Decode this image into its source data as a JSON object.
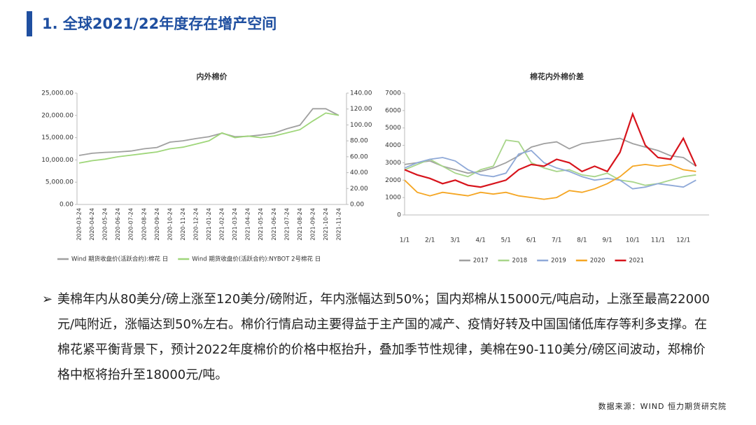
{
  "title": "1. 全球2021/22年度存在增产空间",
  "chart_data": [
    {
      "type": "line",
      "title": "内外棉价",
      "categories": [
        "2020-03-24",
        "2020-04-24",
        "2020-05-24",
        "2020-06-24",
        "2020-07-24",
        "2020-08-24",
        "2020-09-24",
        "2020-10-24",
        "2020-11-24",
        "2020-12-24",
        "2021-01-24",
        "2021-02-24",
        "2021-03-24",
        "2021-04-24",
        "2021-05-24",
        "2021-06-24",
        "2021-07-24",
        "2021-08-24",
        "2021-09-24",
        "2021-10-24",
        "2021-11-24"
      ],
      "series": [
        {
          "name": "Wind 期货收盘价(活跃合约):棉花 日",
          "color": "#a0a0a0",
          "values": [
            11000,
            11500,
            11700,
            11800,
            12000,
            12500,
            12800,
            14000,
            14300,
            14800,
            15200,
            16000,
            15200,
            15300,
            15600,
            16000,
            17000,
            17800,
            21500,
            21500,
            20000
          ]
        },
        {
          "name": "Wind 期货收盘价(活跃合约):NYBOT 2号棉花 日",
          "color": "#9fd67a",
          "axis": "y2",
          "values": [
            52,
            55,
            57,
            60,
            62,
            64,
            66,
            70,
            72,
            76,
            80,
            90,
            84,
            86,
            84,
            86,
            90,
            94,
            105,
            115,
            112
          ]
        }
      ],
      "ylim": [
        0,
        25000
      ],
      "yticks": [
        {
          "value": 0,
          "label": "0.00"
        },
        {
          "value": 5000,
          "label": "5,000.00"
        },
        {
          "value": 10000,
          "label": "10,000.00"
        },
        {
          "value": 15000,
          "label": "15,000.00"
        },
        {
          "value": 20000,
          "label": "20,000.00"
        },
        {
          "value": 25000,
          "label": "25,000.00"
        }
      ],
      "y2lim": [
        0,
        140
      ],
      "y2ticks": [
        {
          "value": 0,
          "label": "0.00"
        },
        {
          "value": 20,
          "label": "20.00"
        },
        {
          "value": 40,
          "label": "40.00"
        },
        {
          "value": 60,
          "label": "60.00"
        },
        {
          "value": 80,
          "label": "80.00"
        },
        {
          "value": 100,
          "label": "100.00"
        },
        {
          "value": 120,
          "label": "120.00"
        },
        {
          "value": 140,
          "label": "140.00"
        }
      ],
      "grid": false
    },
    {
      "type": "line",
      "title": "棉花内外棉价差",
      "categories": [
        "1/1",
        null,
        "2/1",
        null,
        "3/1",
        null,
        "4/1",
        null,
        "5/1",
        null,
        "6/1",
        null,
        "7/1",
        null,
        "8/1",
        null,
        "9/1",
        null,
        "10/1",
        null,
        "11/1",
        null,
        "12/1",
        null
      ],
      "series": [
        {
          "name": "2017",
          "color": "#a0a0a0",
          "values": [
            2900,
            3000,
            3100,
            2800,
            2600,
            2400,
            2500,
            2700,
            3000,
            3400,
            3900,
            4100,
            4200,
            3800,
            4100,
            4200,
            4300,
            4400,
            4100,
            3900,
            3700,
            3400,
            3300,
            2800
          ]
        },
        {
          "name": "2018",
          "color": "#a8d58a",
          "values": [
            2600,
            2900,
            3200,
            2800,
            2400,
            2200,
            2600,
            2800,
            4300,
            4200,
            3000,
            2700,
            2500,
            2600,
            2300,
            2200,
            2400,
            2000,
            1900,
            1700,
            1800,
            2000,
            2200,
            2300
          ]
        },
        {
          "name": "2019",
          "color": "#8fa9d8",
          "values": [
            2700,
            3000,
            3200,
            3300,
            3100,
            2600,
            2300,
            2200,
            2400,
            3500,
            3700,
            3000,
            2700,
            2500,
            2200,
            2000,
            2100,
            2000,
            1500,
            1600,
            1800,
            1700,
            1600,
            2000
          ]
        },
        {
          "name": "2020",
          "color": "#f5a623",
          "values": [
            2000,
            1300,
            1100,
            1300,
            1200,
            1100,
            1300,
            1200,
            1300,
            1100,
            1000,
            900,
            1000,
            1400,
            1300,
            1500,
            1800,
            2200,
            2800,
            2900,
            2800,
            2900,
            2600,
            2500
          ]
        },
        {
          "name": "2021",
          "color": "#d7141c",
          "values": [
            2600,
            2300,
            2100,
            1800,
            2000,
            1700,
            1600,
            1800,
            2000,
            2600,
            2900,
            2800,
            3200,
            3000,
            2500,
            2800,
            2500,
            3600,
            5800,
            4000,
            3300,
            3200,
            4400,
            2800
          ]
        }
      ],
      "ylim": [
        0,
        7000
      ],
      "yticks": [
        0,
        1000,
        2000,
        3000,
        4000,
        5000,
        6000,
        7000
      ],
      "grid": false
    }
  ],
  "text": "美棉年内从80美分/磅上涨至120美分/磅附近，年内涨幅达到50%；国内郑棉从15000元/吨启动，上涨至最高22000元/吨附近，涨幅达到50%左右。棉价行情启动主要得益于主产国的减产、疫情好转及中国国储低库存等利多支撑。在棉花紧平衡背景下，预计2022年度棉价的价格中枢抬升，叠加季节性规律，美棉在90-110美分/磅区间波动，郑棉价格中枢将抬升至18000元/吨。",
  "source": "数据来源：WIND 恒力期货研究院"
}
